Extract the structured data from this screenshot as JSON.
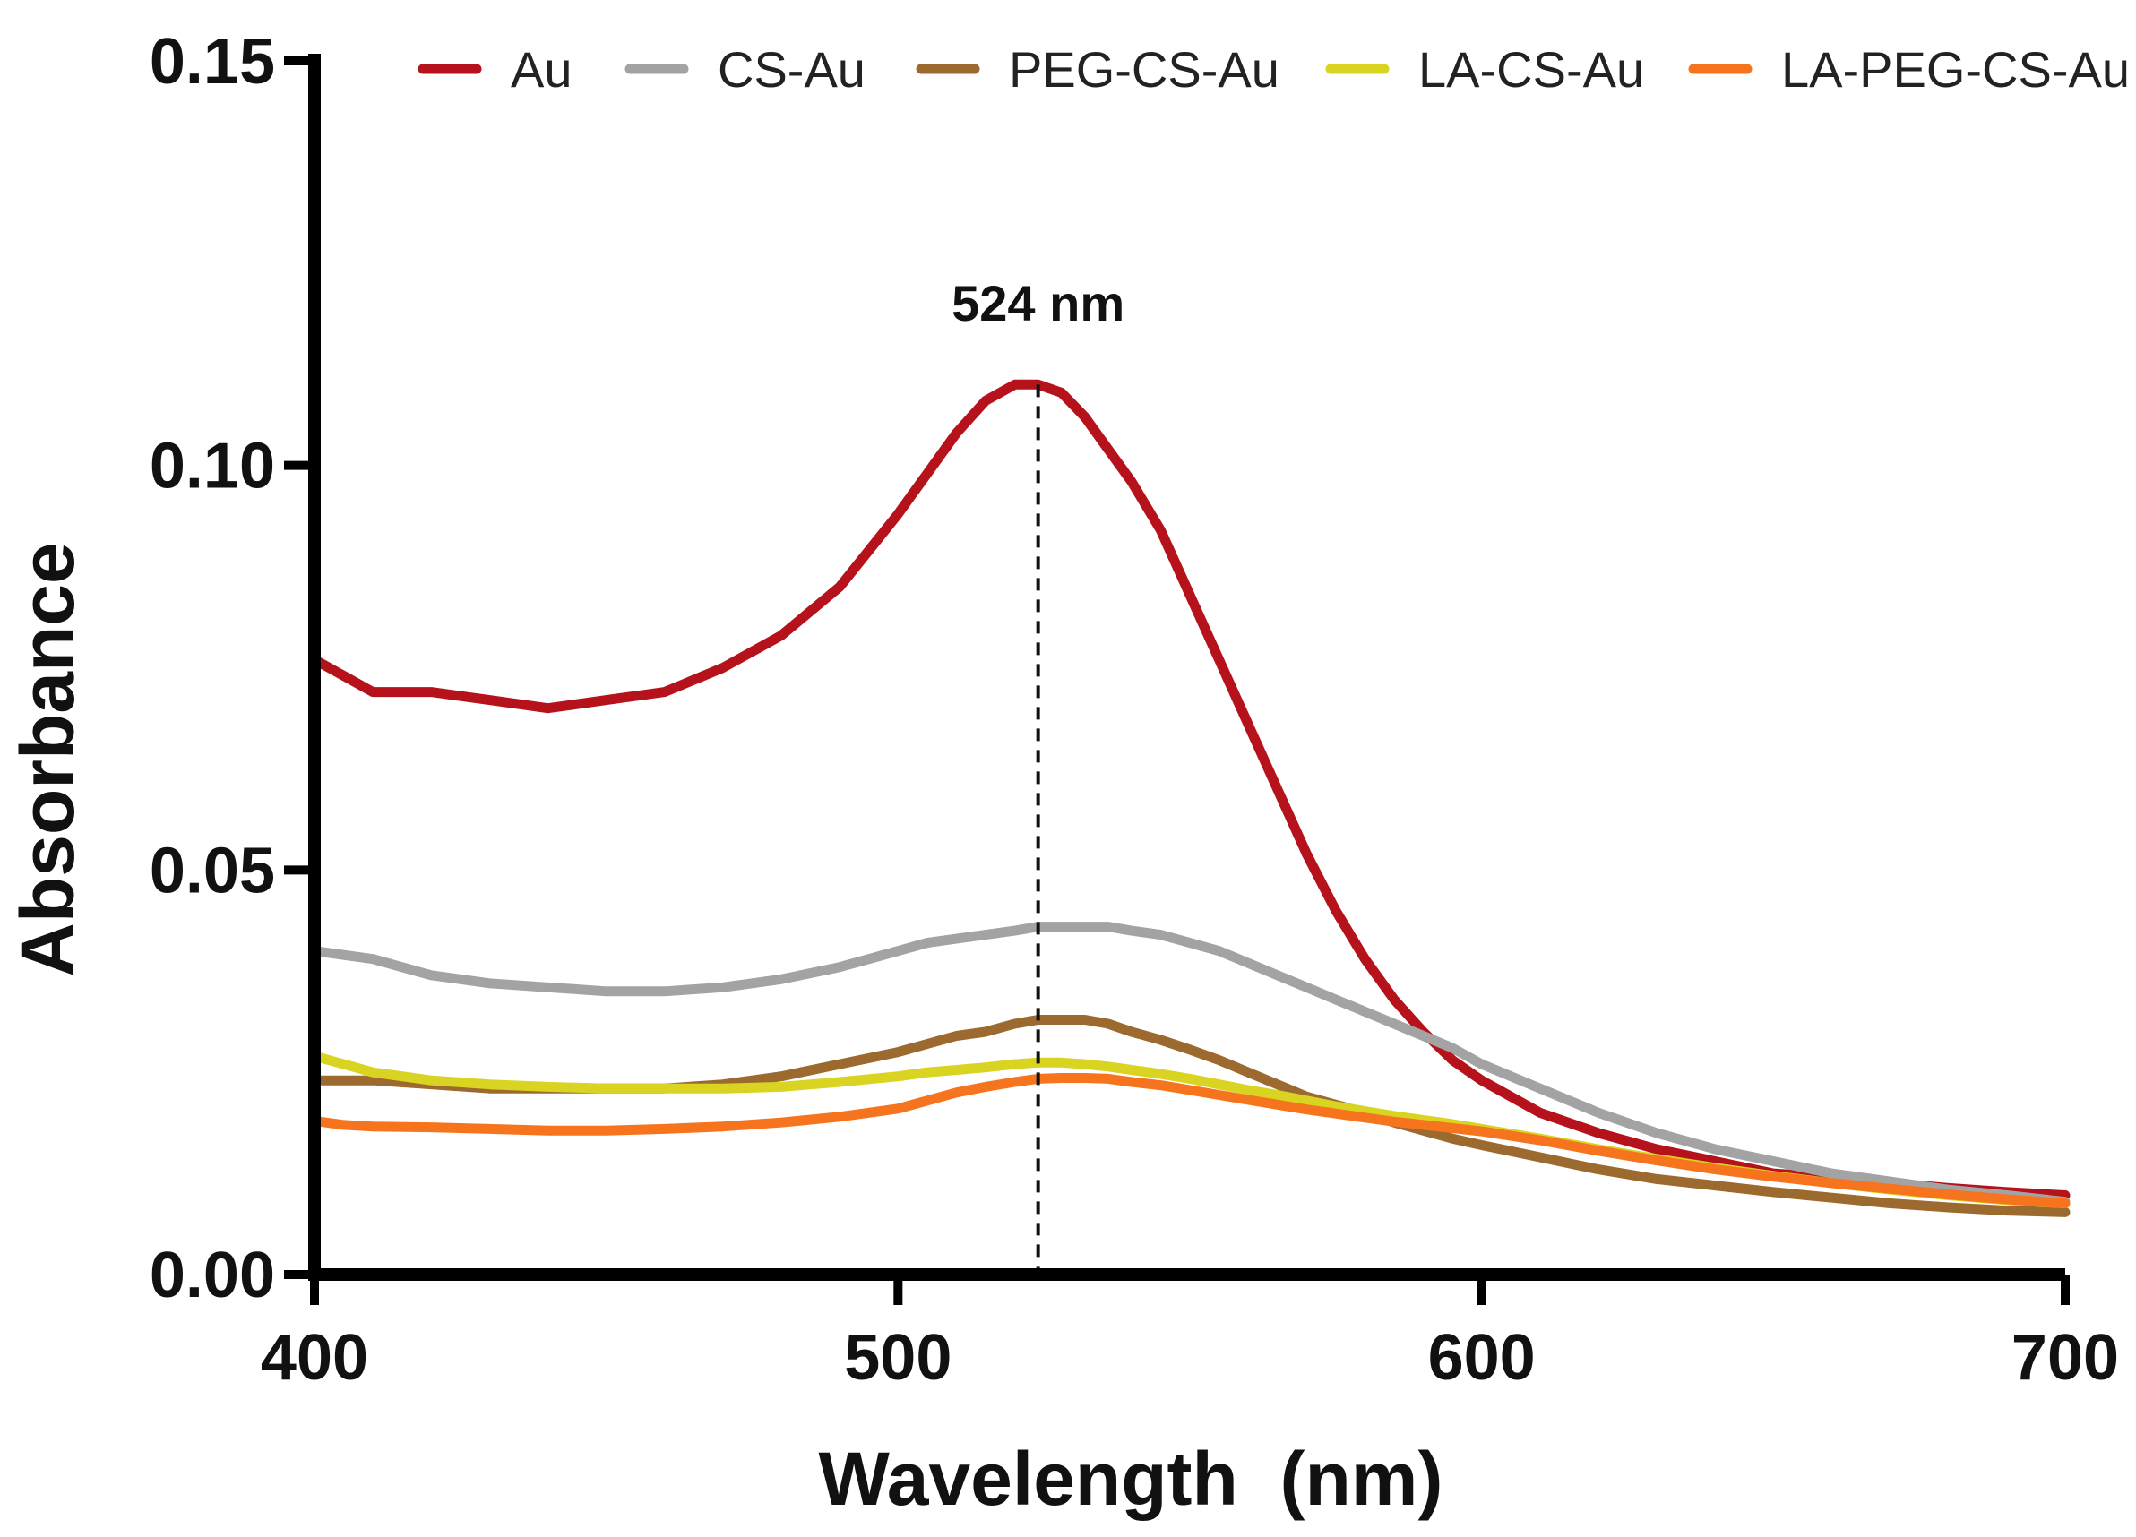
{
  "chart_data": {
    "type": "line",
    "title": "",
    "xlabel": "Wavelength  (nm)",
    "ylabel": "Absorbance",
    "xlim": [
      400,
      700
    ],
    "ylim": [
      0,
      0.15
    ],
    "xticks": [
      400,
      500,
      600,
      700
    ],
    "xtick_labels": [
      "400",
      "500",
      "600",
      "700"
    ],
    "yticks": [
      0,
      0.05,
      0.1,
      0.15
    ],
    "ytick_labels": [
      "0.00",
      "0.05",
      "0.10",
      "0.15"
    ],
    "grid": false,
    "legend_position": "top",
    "annotation": {
      "label": "524 nm",
      "x": 524
    },
    "x": [
      400,
      405,
      410,
      420,
      430,
      440,
      450,
      460,
      470,
      480,
      490,
      500,
      505,
      510,
      515,
      520,
      524,
      528,
      532,
      536,
      540,
      545,
      550,
      555,
      560,
      565,
      570,
      575,
      580,
      585,
      590,
      595,
      600,
      610,
      620,
      630,
      640,
      650,
      660,
      670,
      680,
      690,
      700
    ],
    "series": [
      {
        "name": "Au",
        "color": "#b5121b",
        "values": [
          0.076,
          0.074,
          0.072,
          0.072,
          0.071,
          0.07,
          0.071,
          0.072,
          0.075,
          0.079,
          0.085,
          0.094,
          0.099,
          0.104,
          0.108,
          0.11,
          0.11,
          0.109,
          0.106,
          0.102,
          0.098,
          0.092,
          0.084,
          0.076,
          0.068,
          0.06,
          0.052,
          0.045,
          0.039,
          0.034,
          0.03,
          0.0265,
          0.024,
          0.02,
          0.0175,
          0.0155,
          0.014,
          0.0125,
          0.012,
          0.0113,
          0.0107,
          0.0102,
          0.0098
        ]
      },
      {
        "name": "CS-Au",
        "color": "#a3a3a3",
        "values": [
          0.04,
          0.0395,
          0.039,
          0.037,
          0.036,
          0.0355,
          0.035,
          0.035,
          0.0355,
          0.0365,
          0.038,
          0.04,
          0.041,
          0.0415,
          0.042,
          0.0425,
          0.043,
          0.043,
          0.043,
          0.043,
          0.0425,
          0.042,
          0.041,
          0.04,
          0.0385,
          0.037,
          0.0355,
          0.034,
          0.0325,
          0.031,
          0.0295,
          0.028,
          0.026,
          0.023,
          0.02,
          0.0175,
          0.0155,
          0.014,
          0.0125,
          0.0115,
          0.0105,
          0.0098,
          0.009
        ]
      },
      {
        "name": "PEG-CS-Au",
        "color": "#9c6a2e",
        "values": [
          0.024,
          0.024,
          0.024,
          0.0235,
          0.023,
          0.023,
          0.023,
          0.023,
          0.0235,
          0.0245,
          0.026,
          0.0275,
          0.0285,
          0.0295,
          0.03,
          0.031,
          0.0315,
          0.0315,
          0.0315,
          0.031,
          0.03,
          0.029,
          0.0278,
          0.0265,
          0.025,
          0.0235,
          0.022,
          0.021,
          0.02,
          0.0188,
          0.0178,
          0.0168,
          0.016,
          0.0145,
          0.013,
          0.0118,
          0.011,
          0.0102,
          0.0095,
          0.0088,
          0.0083,
          0.0079,
          0.0077
        ]
      },
      {
        "name": "LA-CS-Au",
        "color": "#d8d421",
        "values": [
          0.027,
          0.026,
          0.025,
          0.024,
          0.0235,
          0.0232,
          0.023,
          0.023,
          0.023,
          0.0232,
          0.0238,
          0.0245,
          0.025,
          0.0253,
          0.0256,
          0.026,
          0.0262,
          0.0262,
          0.026,
          0.0257,
          0.0253,
          0.0248,
          0.0242,
          0.0235,
          0.0228,
          0.0222,
          0.0215,
          0.0208,
          0.0202,
          0.0196,
          0.0191,
          0.0186,
          0.018,
          0.0168,
          0.0155,
          0.0143,
          0.0132,
          0.0122,
          0.0113,
          0.0105,
          0.0098,
          0.0092,
          0.0088
        ]
      },
      {
        "name": "LA-PEG-CS-Au",
        "color": "#f7741e",
        "values": [
          0.019,
          0.0185,
          0.0183,
          0.0182,
          0.018,
          0.0178,
          0.0178,
          0.018,
          0.0183,
          0.0188,
          0.0195,
          0.0205,
          0.0215,
          0.0225,
          0.0232,
          0.0238,
          0.0242,
          0.0243,
          0.0243,
          0.0242,
          0.0238,
          0.0234,
          0.0228,
          0.0222,
          0.0216,
          0.021,
          0.0204,
          0.0199,
          0.0194,
          0.0189,
          0.0185,
          0.0181,
          0.0177,
          0.0166,
          0.0153,
          0.0141,
          0.013,
          0.0121,
          0.0113,
          0.0106,
          0.0099,
          0.0093,
          0.0088
        ]
      }
    ]
  }
}
